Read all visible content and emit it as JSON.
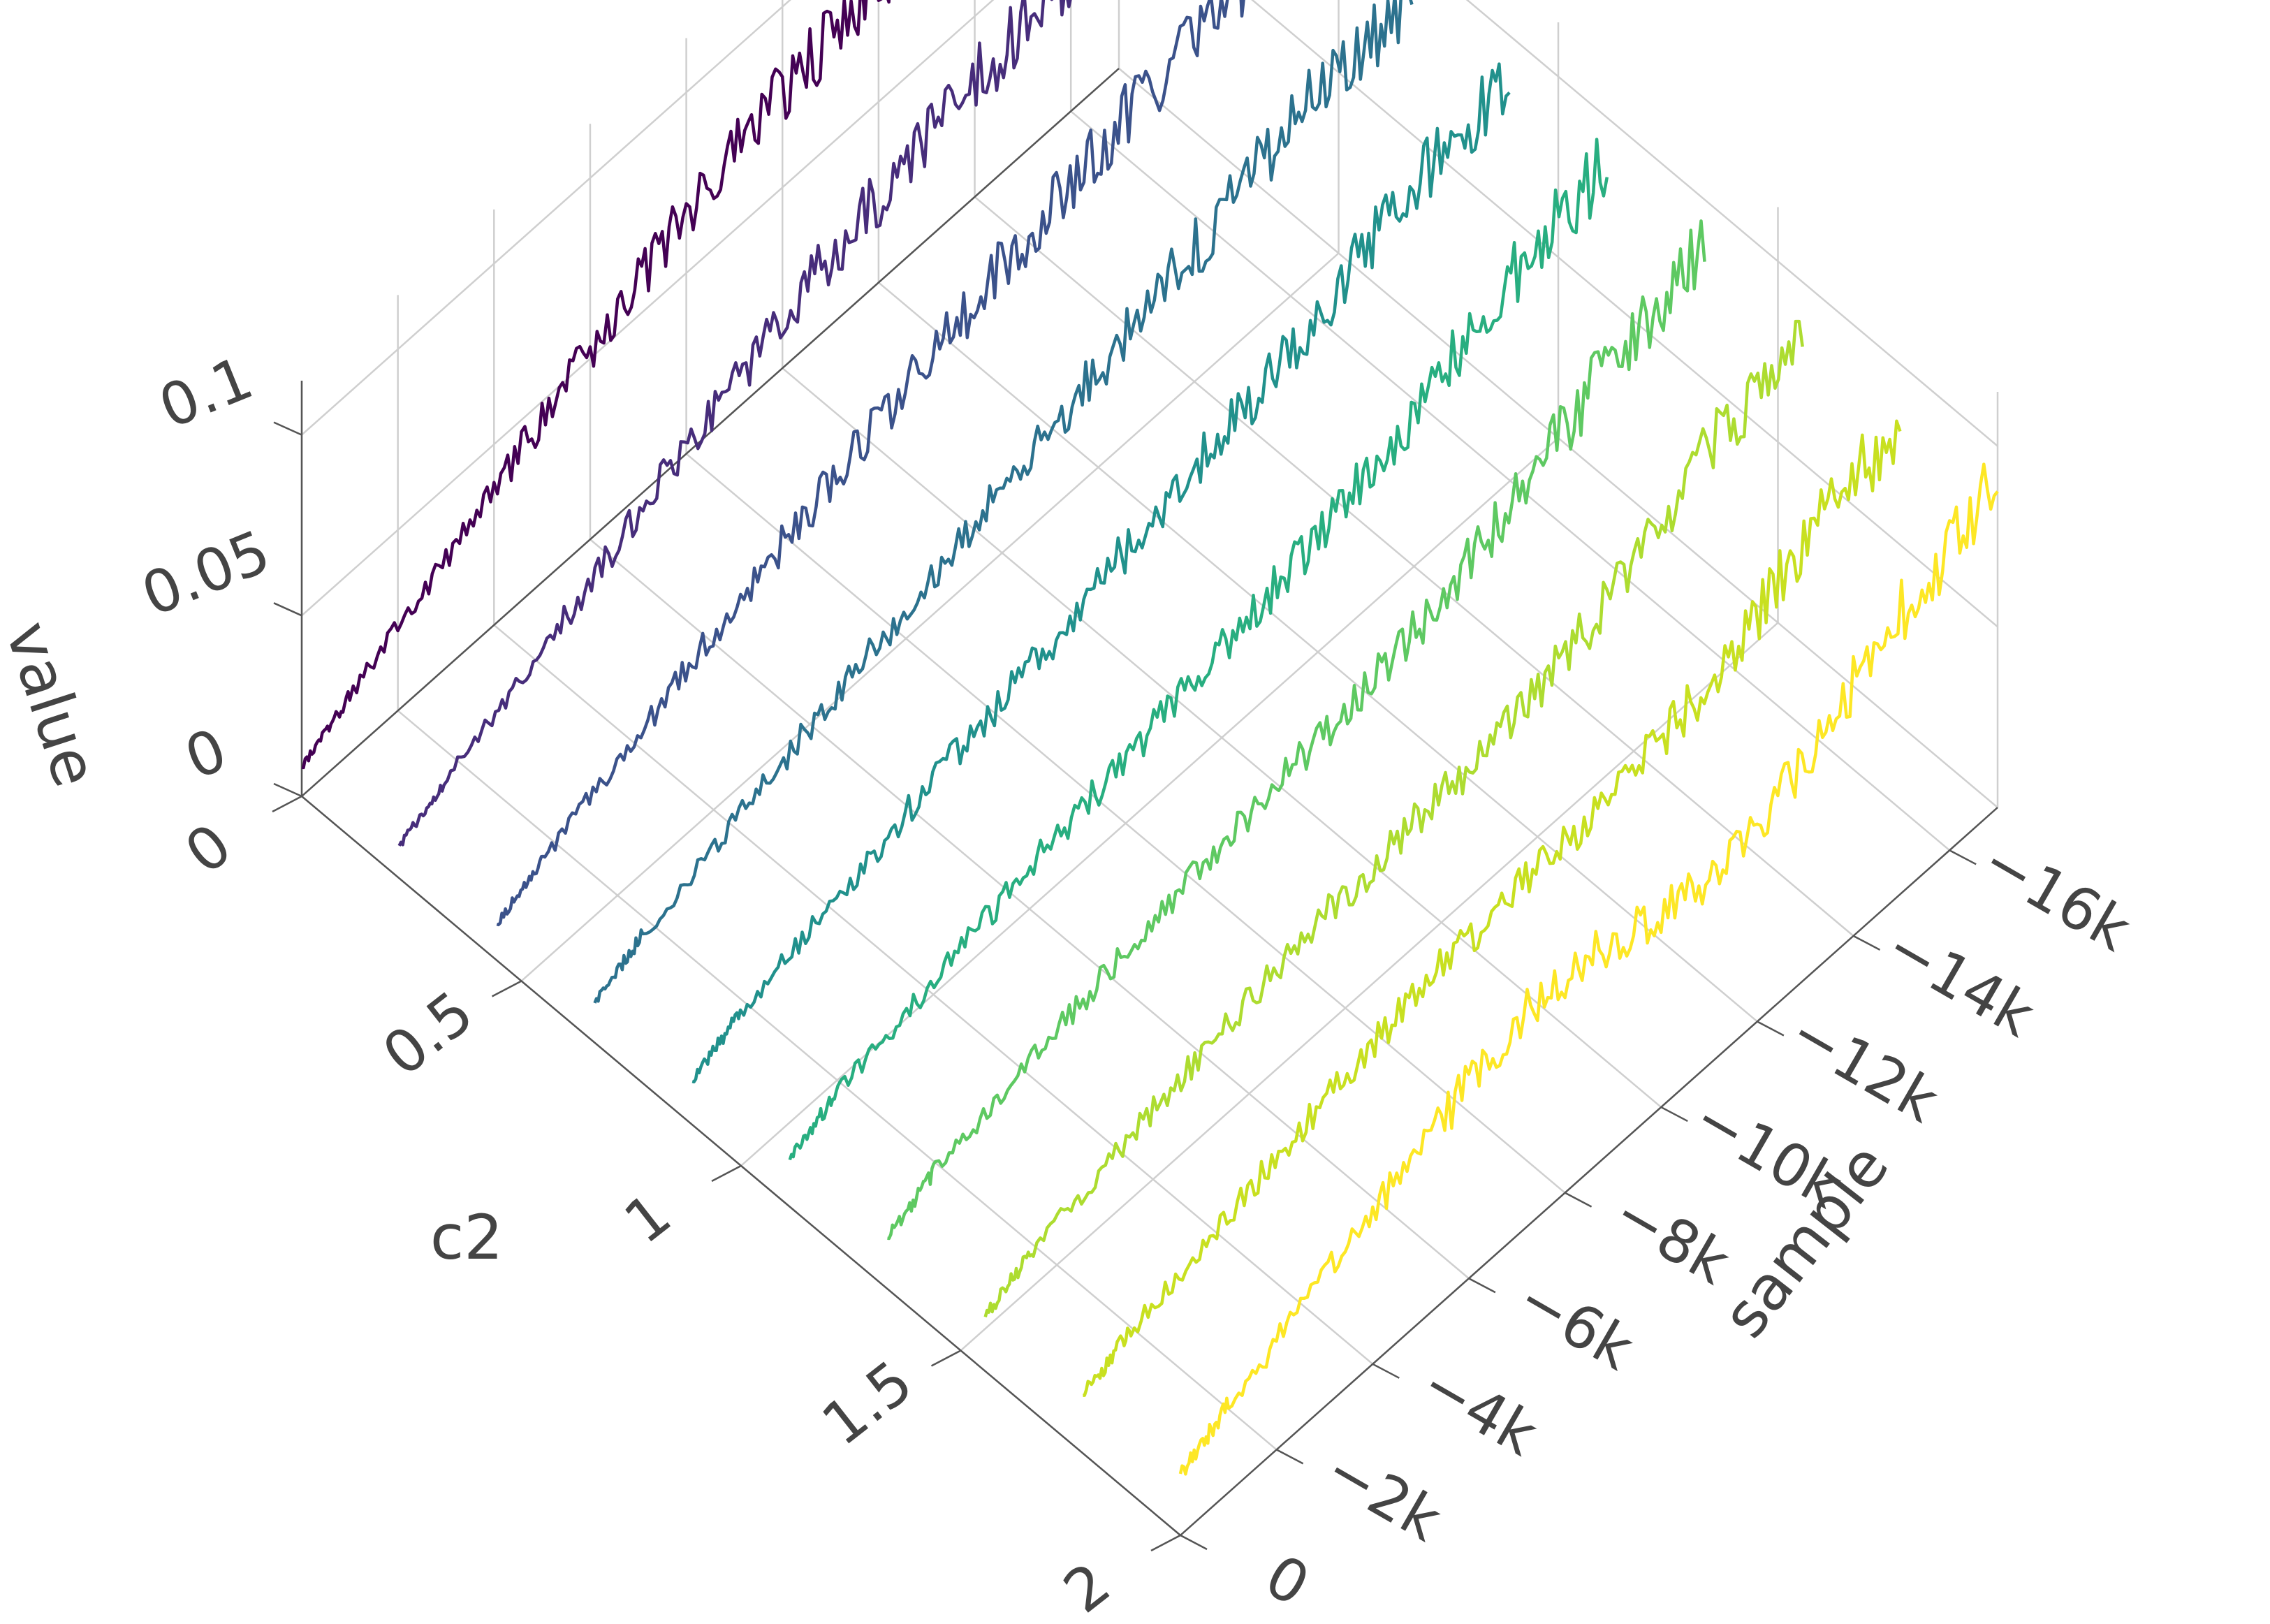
{
  "chart_data": {
    "type": "line",
    "subtype": "3d-waterfall",
    "title": "",
    "axes": {
      "x": {
        "label": "sample",
        "range": [
          -17000,
          0
        ],
        "ticks": [
          0,
          -2000,
          -4000,
          -6000,
          -8000,
          -10000,
          -12000,
          -14000,
          -16000
        ],
        "tick_labels": [
          "0",
          "−2k",
          "−4k",
          "−6k",
          "−8k",
          "−10k",
          "−12k",
          "−14k",
          "−16k"
        ]
      },
      "y": {
        "label": "c2",
        "range": [
          0,
          2
        ],
        "ticks": [
          0,
          0.5,
          1,
          1.5,
          2
        ],
        "tick_labels": [
          "0",
          "0.5",
          "1",
          "1.5",
          "2"
        ]
      },
      "z": {
        "label": "value",
        "range": [
          0,
          0.115
        ],
        "ticks": [
          0,
          0.05,
          0.1
        ],
        "tick_labels": [
          "0",
          "0.05",
          "0.1"
        ]
      }
    },
    "grid": true,
    "legend": "none",
    "colorscale": "viridis",
    "x_common": [
      -17000,
      -15000,
      -13000,
      -11000,
      -9000,
      -7000,
      -5000,
      -3000,
      -1000,
      0
    ],
    "series": [
      {
        "c2": 0.0,
        "color": "#440154",
        "values": [
          0.096,
          0.092,
          0.087,
          0.08,
          0.072,
          0.06,
          0.045,
          0.03,
          0.016,
          0.008
        ]
      },
      {
        "c2": 0.222,
        "color": "#472d7b",
        "values": [
          0.094,
          0.089,
          0.082,
          0.075,
          0.066,
          0.055,
          0.042,
          0.028,
          0.016,
          0.009
        ]
      },
      {
        "c2": 0.444,
        "color": "#3b528b",
        "values": [
          0.092,
          0.086,
          0.078,
          0.07,
          0.06,
          0.05,
          0.04,
          0.028,
          0.017,
          0.01
        ]
      },
      {
        "c2": 0.667,
        "color": "#2c728e",
        "values": [
          0.09,
          0.084,
          0.074,
          0.065,
          0.056,
          0.046,
          0.037,
          0.027,
          0.018,
          0.011
        ]
      },
      {
        "c2": 0.889,
        "color": "#21918c",
        "values": [
          0.088,
          0.082,
          0.07,
          0.06,
          0.052,
          0.043,
          0.036,
          0.027,
          0.019,
          0.012
        ]
      },
      {
        "c2": 1.111,
        "color": "#28ae80",
        "values": [
          0.087,
          0.08,
          0.066,
          0.055,
          0.048,
          0.041,
          0.035,
          0.027,
          0.02,
          0.013
        ]
      },
      {
        "c2": 1.333,
        "color": "#5ec962",
        "values": [
          0.086,
          0.078,
          0.063,
          0.052,
          0.046,
          0.04,
          0.035,
          0.028,
          0.021,
          0.014
        ]
      },
      {
        "c2": 1.556,
        "color": "#addc30",
        "values": [
          0.085,
          0.076,
          0.06,
          0.05,
          0.046,
          0.042,
          0.036,
          0.029,
          0.022,
          0.015
        ]
      },
      {
        "c2": 1.778,
        "color": "#c8e020",
        "values": [
          0.084,
          0.074,
          0.058,
          0.052,
          0.05,
          0.045,
          0.038,
          0.03,
          0.022,
          0.016
        ]
      },
      {
        "c2": 2.0,
        "color": "#fde725",
        "values": [
          0.09,
          0.078,
          0.06,
          0.05,
          0.058,
          0.06,
          0.048,
          0.036,
          0.024,
          0.017
        ]
      }
    ]
  }
}
